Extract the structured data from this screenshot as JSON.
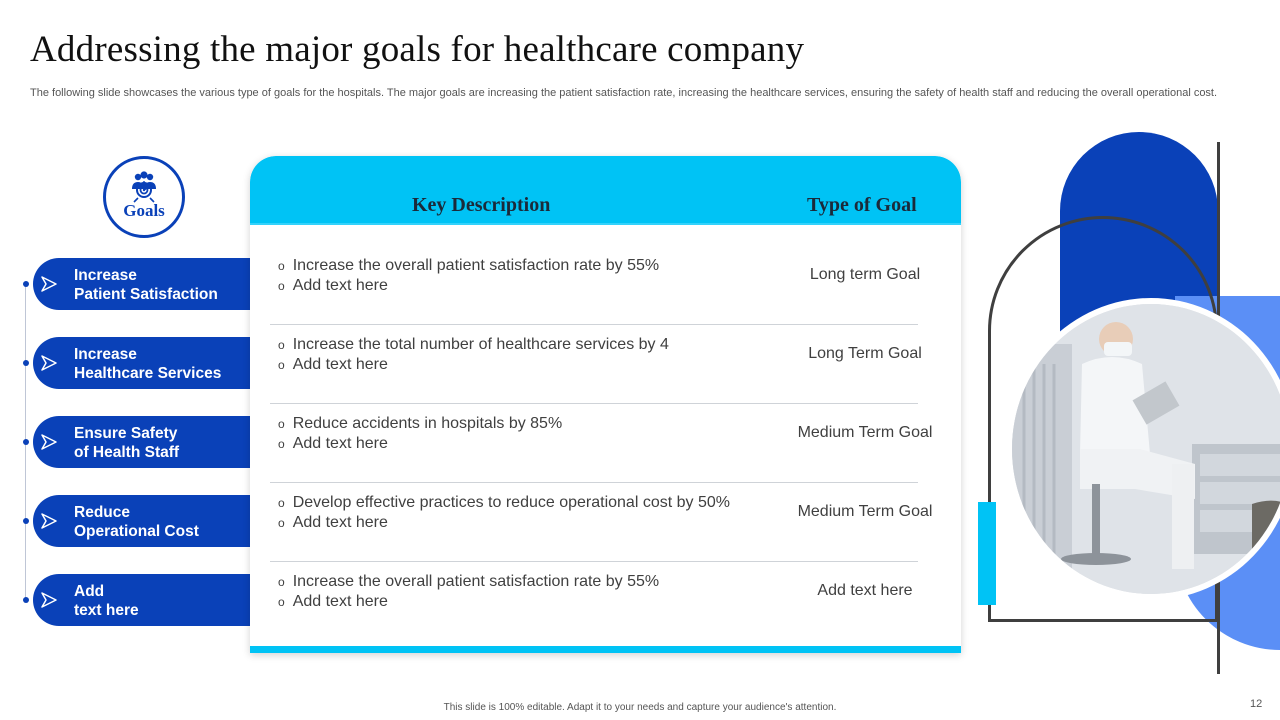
{
  "slide": {
    "title": "Addressing the major goals for healthcare company",
    "subtitle": "The following slide showcases the various type of goals for the hospitals. The major goals are increasing the patient satisfaction rate, increasing the healthcare services, ensuring the safety of health staff and reducing the overall operational cost.",
    "footer": "This slide is 100% editable. Adapt it to your needs and capture your audience's attention.",
    "page_number": "12"
  },
  "badge": {
    "label": "Goals",
    "icon": "people-target-icon"
  },
  "nav": [
    {
      "label": "Increase\nPatient Satisfaction"
    },
    {
      "label": "Increase\nHealthcare Services"
    },
    {
      "label": "Ensure Safety\nof Health Staff"
    },
    {
      "label": "Reduce\nOperational Cost"
    },
    {
      "label": "Add\ntext here"
    }
  ],
  "table": {
    "headers": {
      "description": "Key Description",
      "type": "Type  of Goal"
    },
    "rows": [
      {
        "bullets": [
          "Increase  the overall patient satisfaction rate by 55%",
          "Add text here"
        ],
        "type": "Long term Goal"
      },
      {
        "bullets": [
          "Increase  the total number of healthcare services by 4",
          "Add text here"
        ],
        "type": "Long Term Goal"
      },
      {
        "bullets": [
          "Reduce accidents in hospitals by 85%",
          "Add text here"
        ],
        "type": "Medium Term Goal"
      },
      {
        "bullets": [
          "Develop effective practices to reduce operational cost by 50%",
          "Add text here"
        ],
        "type": "Medium Term Goal"
      },
      {
        "bullets": [
          "Increase  the overall patient satisfaction rate by 55%",
          "Add text here"
        ],
        "type": "Add text here"
      }
    ]
  },
  "colors": {
    "primary_blue": "#0a41b8",
    "cyan": "#00c3f5",
    "light_blue": "#5b8ff6",
    "outline": "#3f3f3f"
  }
}
